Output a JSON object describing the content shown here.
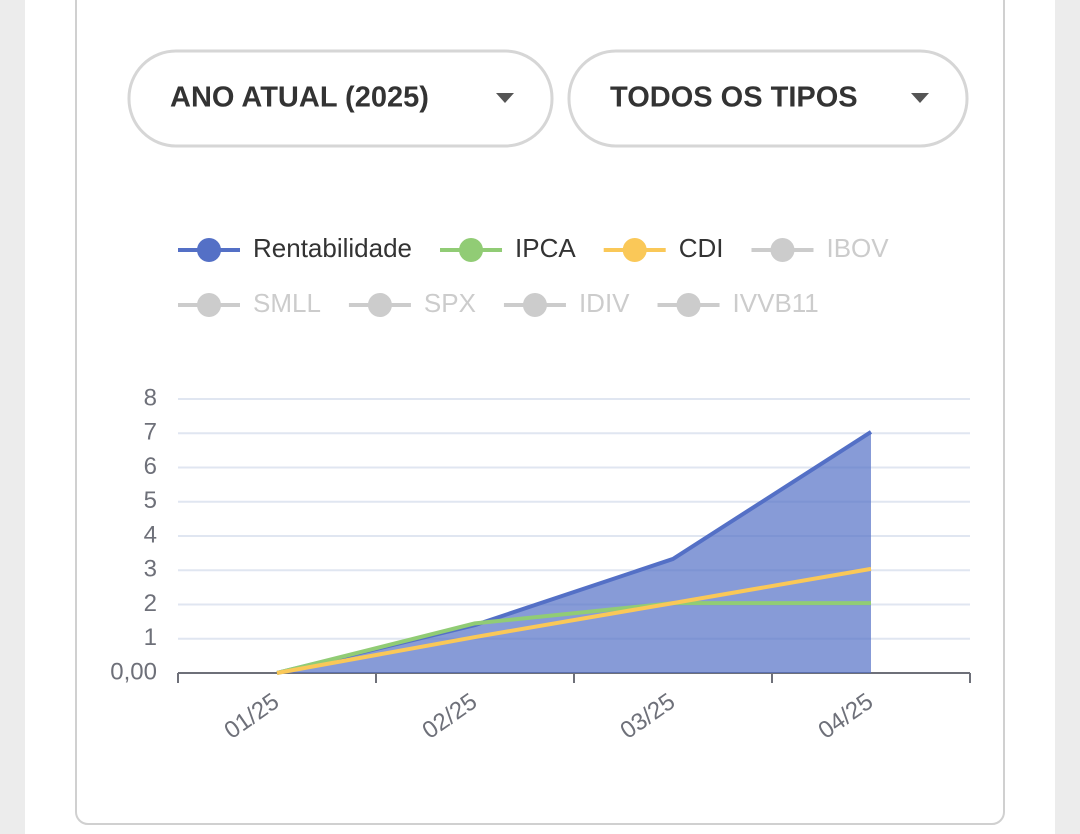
{
  "filters": [
    {
      "label": "ANO ATUAL (2025)"
    },
    {
      "label": "TODOS OS TIPOS"
    }
  ],
  "chart_data": {
    "type": "area",
    "categories": [
      "01/25",
      "02/25",
      "03/25",
      "04/25"
    ],
    "series": [
      {
        "name": "Rentabilidade",
        "color": "#5470c6",
        "values": [
          0,
          1.4,
          3.33,
          7.04
        ],
        "area": true
      },
      {
        "name": "IPCA",
        "color": "#91cc75",
        "values": [
          0,
          1.45,
          2.04,
          2.04
        ]
      },
      {
        "name": "CDI",
        "color": "#fac858",
        "values": [
          0,
          1.05,
          2.04,
          3.04
        ]
      },
      {
        "name": "IBOV",
        "color": "#cccccc",
        "hidden": true
      },
      {
        "name": "SMLL",
        "color": "#cccccc",
        "hidden": true
      },
      {
        "name": "SPX",
        "color": "#cccccc",
        "hidden": true
      },
      {
        "name": "IDIV",
        "color": "#cccccc",
        "hidden": true
      },
      {
        "name": "IVVB11",
        "color": "#cccccc",
        "hidden": true
      }
    ],
    "ylim": [
      0,
      8
    ],
    "yticks": [
      {
        "value": 0,
        "label": "0,00"
      },
      1,
      2,
      3,
      4,
      5,
      6,
      7,
      8
    ],
    "grid": true
  }
}
